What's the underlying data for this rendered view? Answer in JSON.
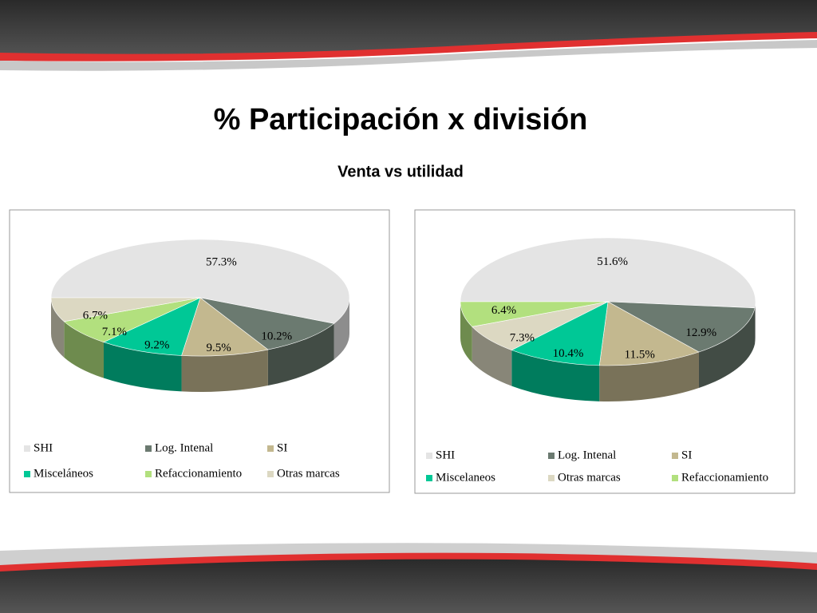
{
  "title": "% Participación x división",
  "subtitle": "Venta vs utilidad",
  "chart_data": [
    {
      "type": "pie",
      "categories": [
        "SHI",
        "Log. Intenal",
        "SI",
        "Misceláneos",
        "Refaccionamiento",
        "Otras marcas"
      ],
      "values": [
        57.3,
        10.2,
        9.5,
        9.2,
        7.1,
        6.7
      ],
      "value_labels": [
        "57.3%",
        "10.2%",
        "9.5%",
        "9.2%",
        "7.1%",
        "6.7%"
      ],
      "colors": [
        "#e4e4e4",
        "#6b7a70",
        "#c3b88f",
        "#00c896",
        "#b2e07e",
        "#dcd8c2"
      ]
    },
    {
      "type": "pie",
      "categories": [
        "SHI",
        "Log. Intenal",
        "SI",
        "Miscelaneos",
        "Otras marcas",
        "Refaccionamiento"
      ],
      "values": [
        51.6,
        12.9,
        11.5,
        10.4,
        7.3,
        6.4
      ],
      "value_labels": [
        "51.6%",
        "12.9%",
        "11.5%",
        "10.4%",
        "7.3%",
        "6.4%"
      ],
      "colors": [
        "#e4e4e4",
        "#6b7a70",
        "#c3b88f",
        "#00c896",
        "#dcd8c2",
        "#b2e07e"
      ]
    }
  ]
}
